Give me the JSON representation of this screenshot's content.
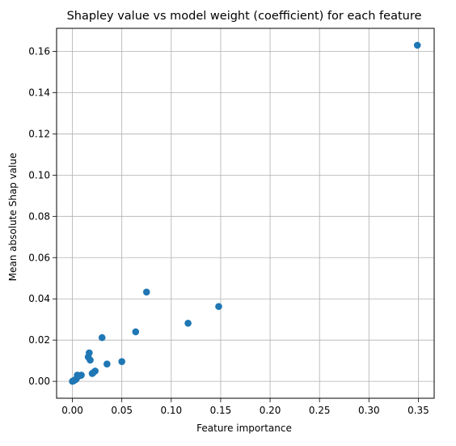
{
  "chart_data": {
    "type": "scatter",
    "title": "Shapley value vs model weight (coefficient) for each feature",
    "xlabel": "Feature importance",
    "ylabel": "Mean absolute Shap value",
    "xlim": [
      -0.016,
      0.366
    ],
    "ylim": [
      -0.0082,
      0.1712
    ],
    "xticks": [
      0.0,
      0.05,
      0.1,
      0.15,
      0.2,
      0.25,
      0.3,
      0.35
    ],
    "xtick_labels": [
      "0.00",
      "0.05",
      "0.10",
      "0.15",
      "0.20",
      "0.25",
      "0.30",
      "0.35"
    ],
    "yticks": [
      0.0,
      0.02,
      0.04,
      0.06,
      0.08,
      0.1,
      0.12,
      0.14,
      0.16
    ],
    "ytick_labels": [
      "0.00",
      "0.02",
      "0.04",
      "0.06",
      "0.08",
      "0.10",
      "0.12",
      "0.14",
      "0.16"
    ],
    "grid": true,
    "marker_color": "#1f77b4",
    "points": [
      {
        "x": 0.349,
        "y": 0.163
      },
      {
        "x": 0.148,
        "y": 0.0363
      },
      {
        "x": 0.117,
        "y": 0.0282
      },
      {
        "x": 0.075,
        "y": 0.0433
      },
      {
        "x": 0.064,
        "y": 0.024
      },
      {
        "x": 0.05,
        "y": 0.0096
      },
      {
        "x": 0.035,
        "y": 0.0084
      },
      {
        "x": 0.03,
        "y": 0.0212
      },
      {
        "x": 0.023,
        "y": 0.005
      },
      {
        "x": 0.021,
        "y": 0.0042
      },
      {
        "x": 0.02,
        "y": 0.0038
      },
      {
        "x": 0.018,
        "y": 0.0103
      },
      {
        "x": 0.017,
        "y": 0.0138
      },
      {
        "x": 0.016,
        "y": 0.0118
      },
      {
        "x": 0.009,
        "y": 0.003
      },
      {
        "x": 0.008,
        "y": 0.0028
      },
      {
        "x": 0.006,
        "y": 0.0025
      },
      {
        "x": 0.005,
        "y": 0.003
      },
      {
        "x": 0.004,
        "y": 0.0012
      },
      {
        "x": 0.003,
        "y": 0.0008
      },
      {
        "x": 0.002,
        "y": 0.0005
      },
      {
        "x": 0.001,
        "y": 0.0003
      },
      {
        "x": 0.0005,
        "y": 0.0001
      },
      {
        "x": 0.0,
        "y": 0.0
      }
    ]
  }
}
